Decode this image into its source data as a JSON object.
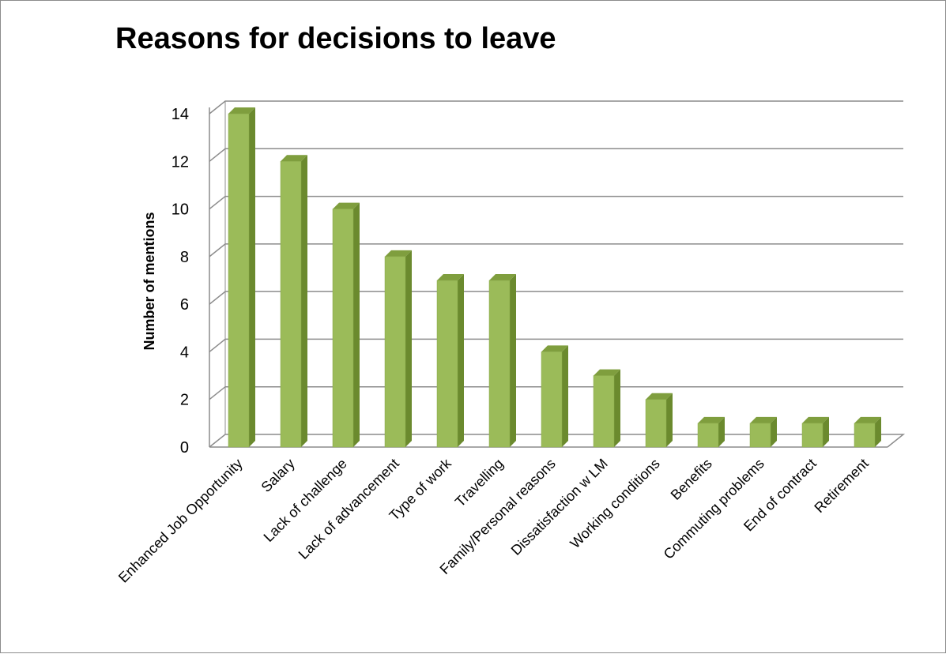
{
  "chart_data": {
    "type": "bar",
    "title": "Reasons for decisions to leave",
    "xlabel": "",
    "ylabel": "Number of mentions",
    "ylim": [
      0,
      14
    ],
    "yticks": [
      "0",
      "2",
      "4",
      "6",
      "8",
      "10",
      "12",
      "14"
    ],
    "grid": true,
    "categories": [
      "Enhanced Job Opportunity",
      "Salary",
      "Lack of challenge",
      "Lack of advancement",
      "Type of work",
      "Travelling",
      "Family/Personal reasons",
      "Dissatisfaction w LM",
      "Working conditions",
      "Benefits",
      "Commuting problems",
      "End of contract",
      "Retirement"
    ],
    "values": [
      14,
      12,
      10,
      8,
      7,
      7,
      4,
      3,
      2,
      1,
      1,
      1,
      1
    ],
    "colors": {
      "bar_front": "#9bbb59",
      "bar_side": "#6b8a2e",
      "bar_top": "#7f9e3e",
      "gridline": "#8c8c8c"
    }
  }
}
